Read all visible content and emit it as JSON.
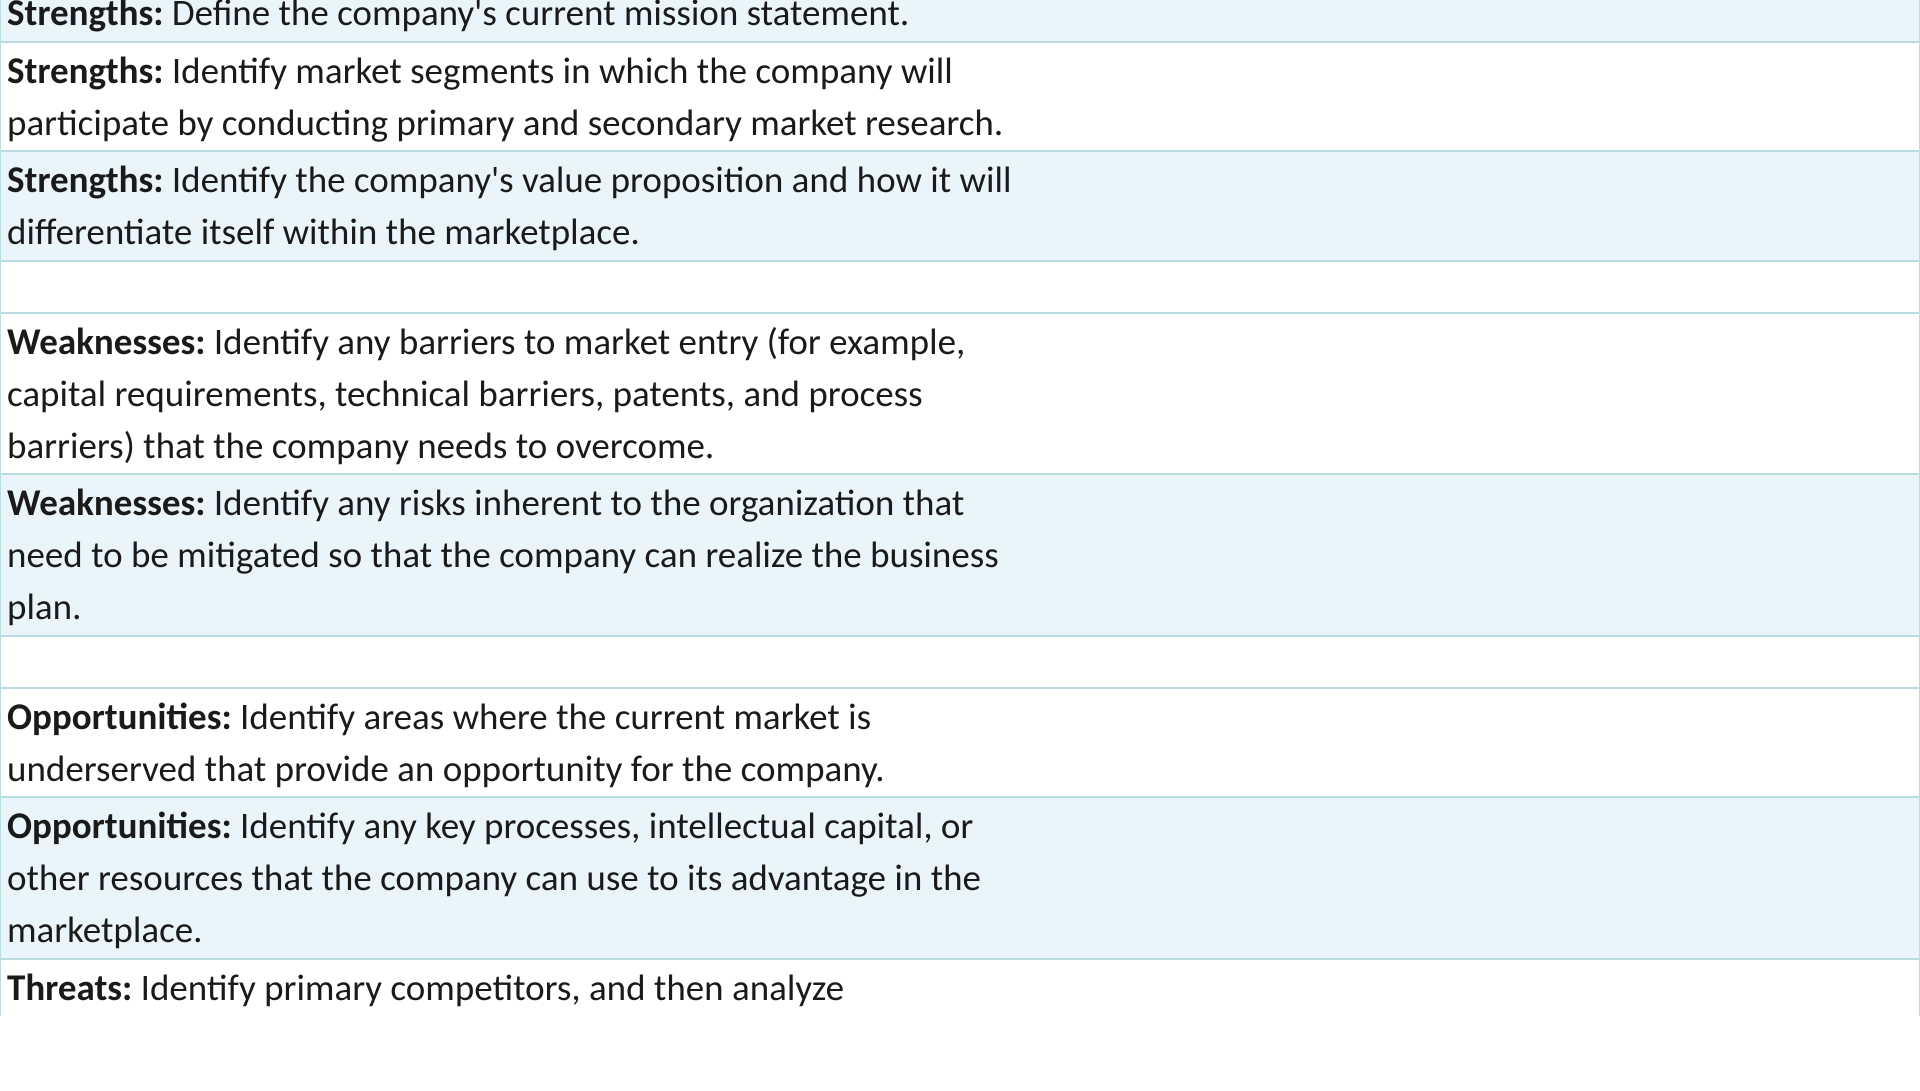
{
  "rows": [
    {
      "category": "Strengths:",
      "text": "Define the company's current mission statement.",
      "bg": "alt",
      "clippedTop": true
    },
    {
      "category": "Strengths:",
      "text": "Identify market segments in which the company will participate by conducting primary and secondary market research.",
      "bg": "plain"
    },
    {
      "category": "Strengths:",
      "text": "Identify the company's value proposition and how it will differentiate itself within the marketplace.",
      "bg": "alt"
    },
    {
      "spacer": true
    },
    {
      "category": "Weaknesses:",
      "text": "Identify any barriers to market entry (for example, capital requirements, technical barriers, patents, and process barriers) that the company needs to overcome.",
      "bg": "plain"
    },
    {
      "category": "Weaknesses:",
      "text": "Identify any risks inherent to the organization that need to be mitigated so that the company can realize the business plan.",
      "bg": "alt"
    },
    {
      "spacer": true
    },
    {
      "category": "Opportunities:",
      "text": "Identify areas where the current market is underserved that provide an opportunity for the company.",
      "bg": "plain"
    },
    {
      "category": "Opportunities:",
      "text": "Identify any key processes, intellectual capital, or other resources that the company can use to its advantage in the marketplace.",
      "bg": "alt"
    },
    {
      "category": "Threats:",
      "text": "Identify primary competitors, and then analyze",
      "bg": "plain",
      "clippedBottom": true
    }
  ],
  "colors": {
    "altRowBg": "#eaf4fb",
    "plainRowBg": "#ffffff",
    "border": "#b8dce0",
    "text": "#1a1a1a"
  },
  "typography": {
    "fontFamily": "Calibri",
    "fontSizePx": 37,
    "labelWeight": 700
  }
}
